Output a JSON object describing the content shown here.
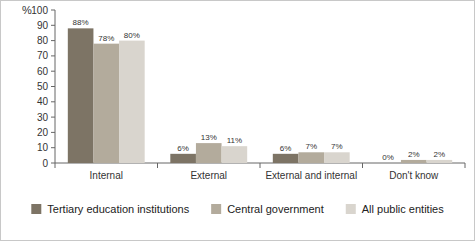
{
  "chart_data": {
    "type": "bar",
    "y_label": "%",
    "categories": [
      "Internal",
      "External",
      "External and internal",
      "Don't know"
    ],
    "series": [
      {
        "name": "Tertiary education institutions",
        "color": "#7d7465",
        "values": [
          88,
          6,
          6,
          0
        ],
        "value_labels": [
          "88%",
          "6%",
          "6%",
          "0%"
        ]
      },
      {
        "name": "Central government",
        "color": "#b3ab9c",
        "values": [
          78,
          13,
          7,
          2
        ],
        "value_labels": [
          "78%",
          "13%",
          "7%",
          "2%"
        ]
      },
      {
        "name": "All public entities",
        "color": "#d9d5ce",
        "values": [
          80,
          11,
          7,
          2
        ],
        "value_labels": [
          "80%",
          "11%",
          "7%",
          "2%"
        ]
      }
    ],
    "ylim": [
      0,
      100
    ],
    "yticks": [
      0,
      10,
      20,
      30,
      40,
      50,
      60,
      70,
      80,
      90,
      100
    ],
    "grid": false,
    "data_labels": true,
    "legend": "bottom"
  }
}
